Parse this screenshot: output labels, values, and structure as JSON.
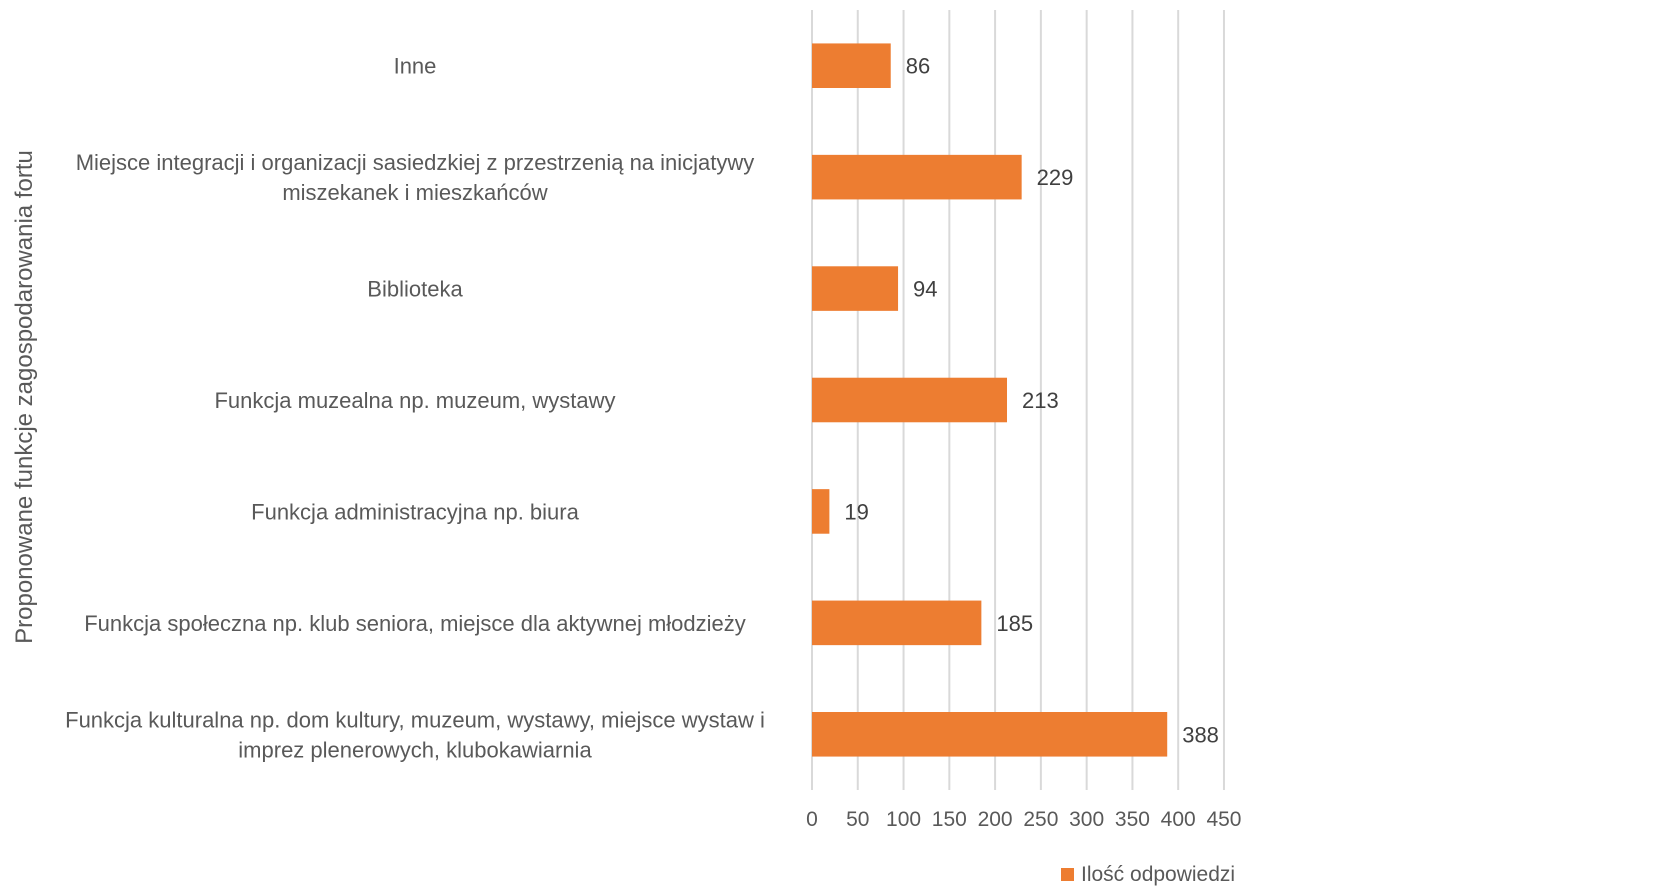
{
  "chart_data": {
    "type": "bar",
    "orientation": "horizontal",
    "categories": [
      [
        "Inne"
      ],
      [
        "Miejsce integracji i organizacji sasiedzkiej z przestrzenią na inicjatywy",
        "miszekanek i mieszkańców"
      ],
      [
        "Biblioteka"
      ],
      [
        "Funkcja muzealna np. muzeum, wystawy"
      ],
      [
        "Funkcja administracyjna np. biura"
      ],
      [
        "Funkcja społeczna np. klub seniora, miejsce dla aktywnej młodzieży"
      ],
      [
        "Funkcja kulturalna np. dom kultury, muzeum, wystawy, miejsce wystaw i",
        "imprez plenerowych, klubokawiarnia"
      ]
    ],
    "series": [
      {
        "name": "Ilość odpowiedzi",
        "values": [
          86,
          229,
          94,
          213,
          19,
          185,
          388
        ],
        "color": "#ED7D31"
      }
    ],
    "title": "",
    "xlabel": "",
    "ylabel": "Proponowane funkcje zagospodarowania fortu",
    "xlim": [
      0,
      450
    ],
    "xticks": [
      0,
      50,
      100,
      150,
      200,
      250,
      300,
      350,
      400,
      450
    ],
    "grid": true,
    "legend_position": "bottom",
    "data_labels": true
  }
}
